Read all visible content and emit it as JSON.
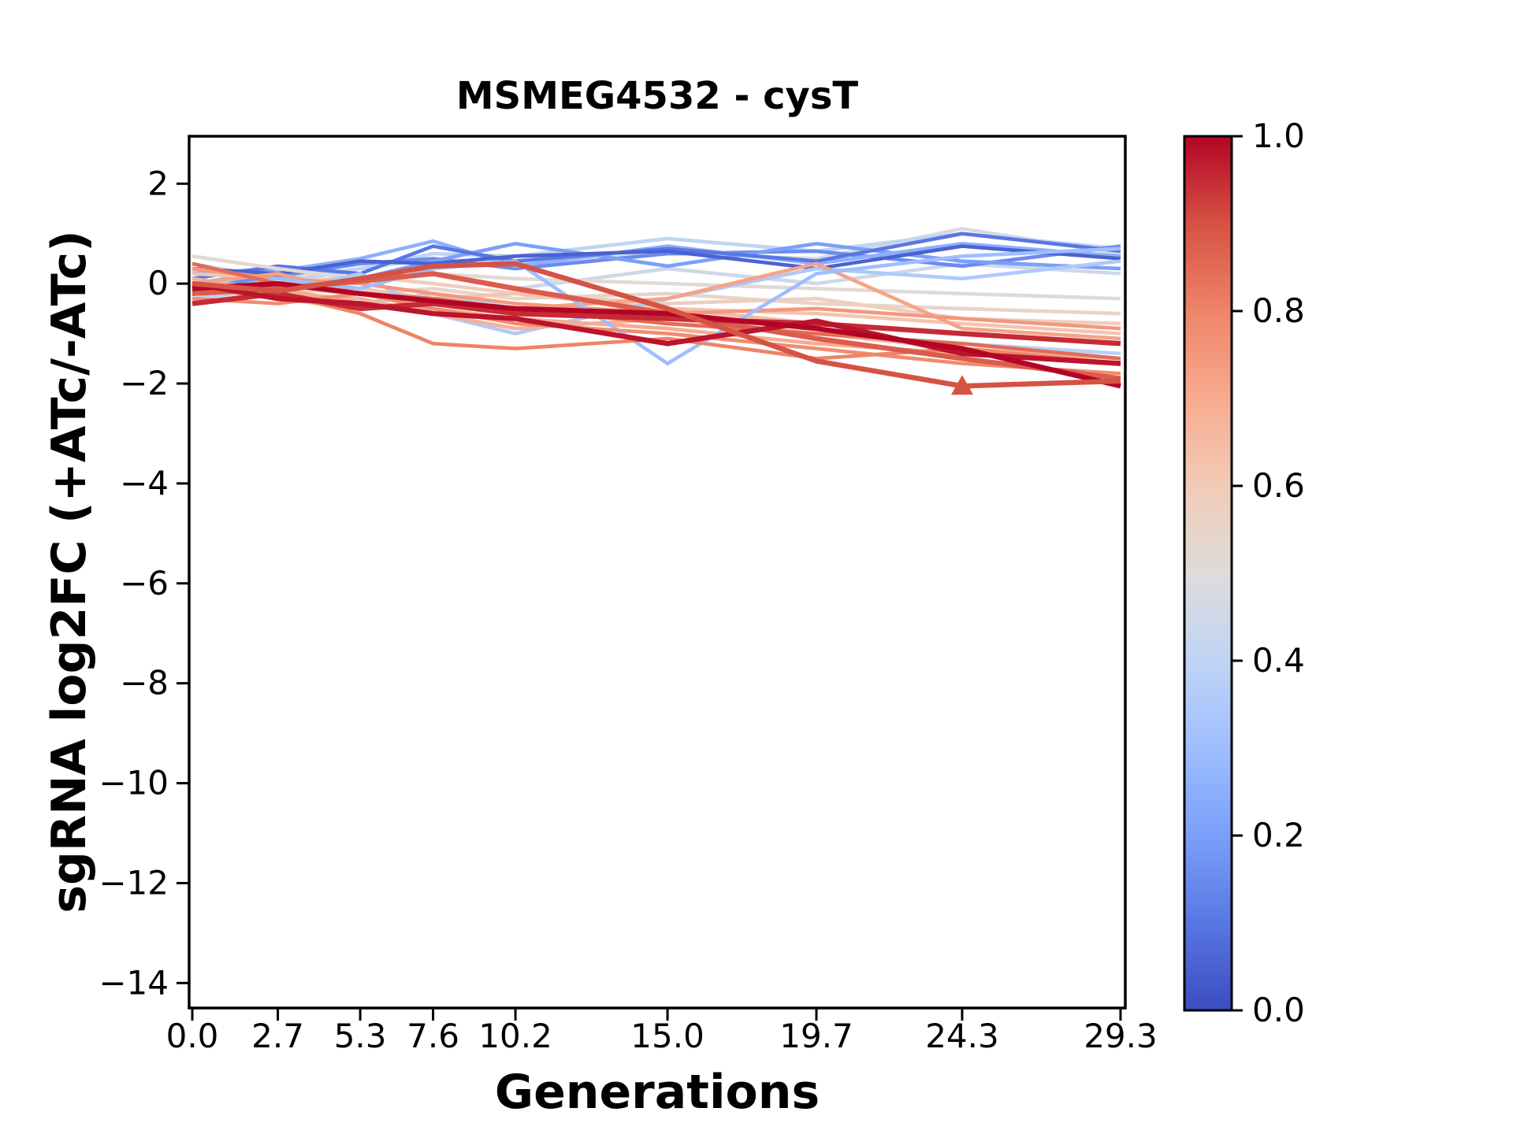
{
  "chart_data": {
    "type": "line",
    "title": "MSMEG4532 - cysT",
    "xlabel": "Generations",
    "ylabel": "sgRNA log2FC (+ATc/-ATc)",
    "x": [
      0.0,
      2.7,
      5.3,
      7.6,
      10.2,
      15.0,
      19.7,
      24.3,
      29.3
    ],
    "xtick_labels": [
      "0.0",
      "2.7",
      "5.3",
      "7.6",
      "10.2",
      "15.0",
      "19.7",
      "24.3",
      "29.3"
    ],
    "ytick_values": [
      2,
      0,
      -2,
      -4,
      -6,
      -8,
      -10,
      -12,
      -14
    ],
    "ytick_labels": [
      "2",
      "0",
      "−2",
      "−4",
      "−6",
      "−8",
      "−10",
      "−12",
      "−14"
    ],
    "xlim": [
      -0.1,
      29.45
    ],
    "ylim": [
      -14.5,
      2.95
    ],
    "grid": false,
    "line_color_meaning": "colormap value 0-1 shown in colorbar (coolwarm: blue=0, red=1)",
    "series": [
      {
        "colormap_value": 0.45,
        "y": [
          0.0,
          -0.2,
          0.1,
          0.2,
          -0.1,
          0.3,
          0.0,
          0.4,
          0.2
        ]
      },
      {
        "colormap_value": 0.48,
        "y": [
          0.4,
          0.1,
          0.3,
          0.5,
          0.4,
          0.6,
          0.5,
          1.1,
          0.6
        ]
      },
      {
        "colormap_value": 0.38,
        "y": [
          -0.3,
          -0.1,
          -0.4,
          -0.2,
          -0.5,
          -0.8,
          -1.0,
          -1.2,
          -1.4
        ]
      },
      {
        "colormap_value": 0.4,
        "y": [
          0.25,
          0.0,
          0.3,
          0.6,
          0.55,
          0.9,
          0.65,
          1.0,
          0.7
        ]
      },
      {
        "colormap_value": 0.15,
        "y": [
          -0.1,
          0.15,
          0.4,
          0.5,
          0.3,
          0.6,
          0.65,
          0.35,
          0.75
        ]
      },
      {
        "colormap_value": 0.2,
        "y": [
          0.2,
          0.3,
          0.1,
          0.45,
          0.8,
          0.35,
          0.8,
          0.45,
          0.3
        ]
      },
      {
        "colormap_value": 0.25,
        "y": [
          0.0,
          0.25,
          0.5,
          0.85,
          0.35,
          0.75,
          0.4,
          0.8,
          0.55
        ]
      },
      {
        "colormap_value": 0.1,
        "y": [
          0.1,
          0.35,
          0.2,
          0.75,
          0.45,
          0.7,
          0.45,
          1.0,
          0.65
        ]
      },
      {
        "colormap_value": 0.05,
        "y": [
          0.3,
          0.2,
          0.45,
          0.4,
          0.55,
          0.65,
          0.3,
          0.75,
          0.5
        ]
      },
      {
        "colormap_value": 0.52,
        "y": [
          0.55,
          0.3,
          0.1,
          0.2,
          0.1,
          0.0,
          -0.1,
          -0.2,
          -0.3
        ]
      },
      {
        "colormap_value": 0.55,
        "y": [
          0.0,
          -0.1,
          -0.2,
          -0.1,
          -0.3,
          -0.2,
          -0.4,
          -0.5,
          -0.6
        ]
      },
      {
        "colormap_value": 0.58,
        "y": [
          -0.1,
          0.0,
          0.15,
          0.0,
          -0.2,
          -0.4,
          -0.3,
          -0.7,
          -0.8
        ]
      },
      {
        "colormap_value": 0.62,
        "y": [
          0.2,
          0.1,
          -0.1,
          -0.3,
          -0.2,
          -0.5,
          -0.6,
          -0.8,
          -1.0
        ]
      },
      {
        "colormap_value": 0.65,
        "y": [
          -0.1,
          -0.3,
          -0.5,
          -0.4,
          -0.6,
          -0.5,
          -0.8,
          -1.0,
          -1.2
        ]
      },
      {
        "colormap_value": 0.35,
        "y": [
          0.1,
          -0.15,
          0.2,
          -0.6,
          -1.0,
          -0.3,
          0.3,
          0.1,
          0.45
        ]
      },
      {
        "colormap_value": 0.68,
        "y": [
          0.1,
          -0.2,
          -0.3,
          -0.6,
          -0.9,
          -0.7,
          -1.0,
          -1.3,
          -1.5
        ]
      },
      {
        "colormap_value": 0.7,
        "y": [
          -0.2,
          -0.1,
          -0.4,
          -0.5,
          -0.7,
          -0.9,
          -1.2,
          -1.4,
          -1.6
        ]
      },
      {
        "colormap_value": 0.72,
        "y": [
          0.0,
          0.2,
          -0.2,
          -0.4,
          -0.5,
          -0.3,
          0.4,
          -0.9,
          -1.1
        ]
      },
      {
        "colormap_value": 0.75,
        "y": [
          0.3,
          0.1,
          0.0,
          -0.2,
          -0.4,
          -0.6,
          -0.5,
          -0.7,
          -0.9
        ]
      },
      {
        "colormap_value": 0.3,
        "y": [
          -0.2,
          0.1,
          -0.1,
          0.3,
          0.45,
          -1.6,
          0.2,
          0.55,
          0.7
        ]
      },
      {
        "colormap_value": 0.78,
        "y": [
          -0.3,
          -0.4,
          -0.2,
          -0.5,
          -0.8,
          -1.0,
          -1.3,
          -1.6,
          -1.8
        ]
      },
      {
        "colormap_value": 0.8,
        "y": [
          0.0,
          -0.2,
          -0.6,
          -1.2,
          -1.3,
          -1.1,
          -1.5,
          -1.3,
          -1.6
        ]
      },
      {
        "colormap_value": 0.85,
        "y": [
          0.4,
          0.0,
          -0.2,
          -0.3,
          -0.5,
          -0.8,
          -1.0,
          -1.2,
          -1.5
        ]
      },
      {
        "colormap_value": 0.88,
        "lw": 6.5,
        "y": [
          -0.2,
          -0.1,
          0.05,
          0.2,
          -0.1,
          -0.6,
          -1.1,
          -1.5,
          -1.9
        ]
      },
      {
        "colormap_value": 0.95,
        "lw": 6.5,
        "y": [
          -0.4,
          -0.2,
          -0.5,
          -0.4,
          -0.6,
          -0.7,
          -0.8,
          -1.0,
          -1.2
        ]
      },
      {
        "colormap_value": 0.98,
        "lw": 6.5,
        "y": [
          0.0,
          -0.3,
          -0.4,
          -0.6,
          -0.7,
          -1.2,
          -0.75,
          -1.4,
          -1.6
        ]
      },
      {
        "colormap_value": 1.0,
        "lw": 6.5,
        "y": [
          -0.1,
          0.0,
          -0.2,
          -0.35,
          -0.5,
          -0.6,
          -0.9,
          -1.3,
          -2.05
        ]
      },
      {
        "colormap_value": 0.9,
        "lw": 6.5,
        "y": [
          0.0,
          -0.15,
          0.1,
          0.35,
          0.4,
          -0.5,
          -1.55,
          -2.05,
          -1.95
        ]
      }
    ],
    "marker": {
      "shape": "triangle-up",
      "x": 24.3,
      "y": -2.05,
      "colormap_value": 0.9
    },
    "colorbar": {
      "orientation": "vertical",
      "tick_values": [
        1.0,
        0.8,
        0.6,
        0.4,
        0.2,
        0.0
      ],
      "tick_labels": [
        "1.0",
        "0.8",
        "0.6",
        "0.4",
        "0.2",
        "0.0"
      ],
      "colormap": "coolwarm",
      "stops": [
        [
          0.0,
          "#3b4cc0"
        ],
        [
          0.1,
          "#5977e3"
        ],
        [
          0.2,
          "#7b9ff9"
        ],
        [
          0.3,
          "#9ebeff"
        ],
        [
          0.4,
          "#c0d4f5"
        ],
        [
          0.5,
          "#dddcdb"
        ],
        [
          0.6,
          "#f2cbb7"
        ],
        [
          0.7,
          "#f7ab8f"
        ],
        [
          0.8,
          "#ee8468"
        ],
        [
          0.9,
          "#d65244"
        ],
        [
          1.0,
          "#b40426"
        ]
      ]
    },
    "colors": {
      "spine": "#000000",
      "background": "#ffffff",
      "text": "#000000"
    }
  }
}
